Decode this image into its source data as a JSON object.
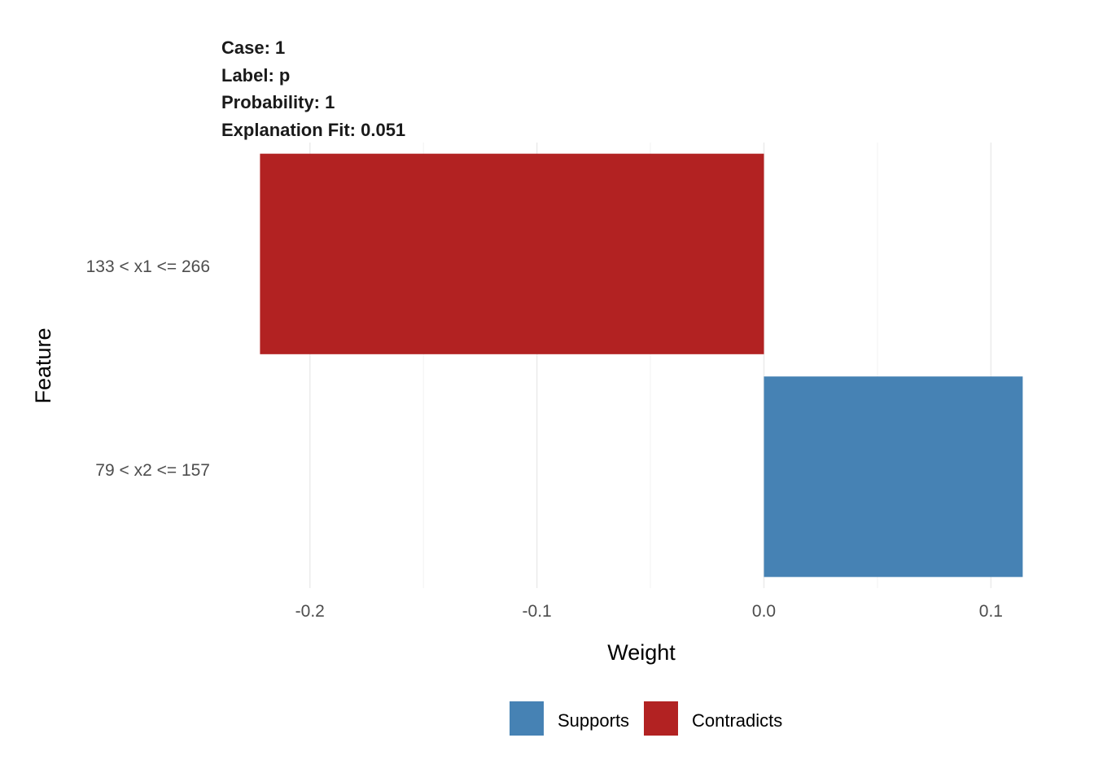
{
  "chart_data": {
    "type": "bar",
    "orientation": "horizontal",
    "title_lines": [
      "Case: 1",
      "Label: p",
      "Probability: 1",
      "Explanation Fit: 0.051"
    ],
    "xlabel": "Weight",
    "ylabel": "Feature",
    "categories": [
      "133 < x1 <= 266",
      "79 < x2 <= 157"
    ],
    "values": [
      -0.222,
      0.114
    ],
    "groups": [
      "Contradicts",
      "Supports"
    ],
    "xlim": [
      -0.239,
      0.116
    ],
    "xticks": [
      -0.2,
      -0.1,
      0.0,
      0.1
    ],
    "xtick_labels": [
      "-0.2",
      "-0.1",
      "0.0",
      "0.1"
    ],
    "grid": true,
    "legend": {
      "position": "bottom",
      "items": [
        {
          "label": "Supports",
          "color": "#4682B4"
        },
        {
          "label": "Contradicts",
          "color": "#B22222"
        }
      ]
    }
  }
}
